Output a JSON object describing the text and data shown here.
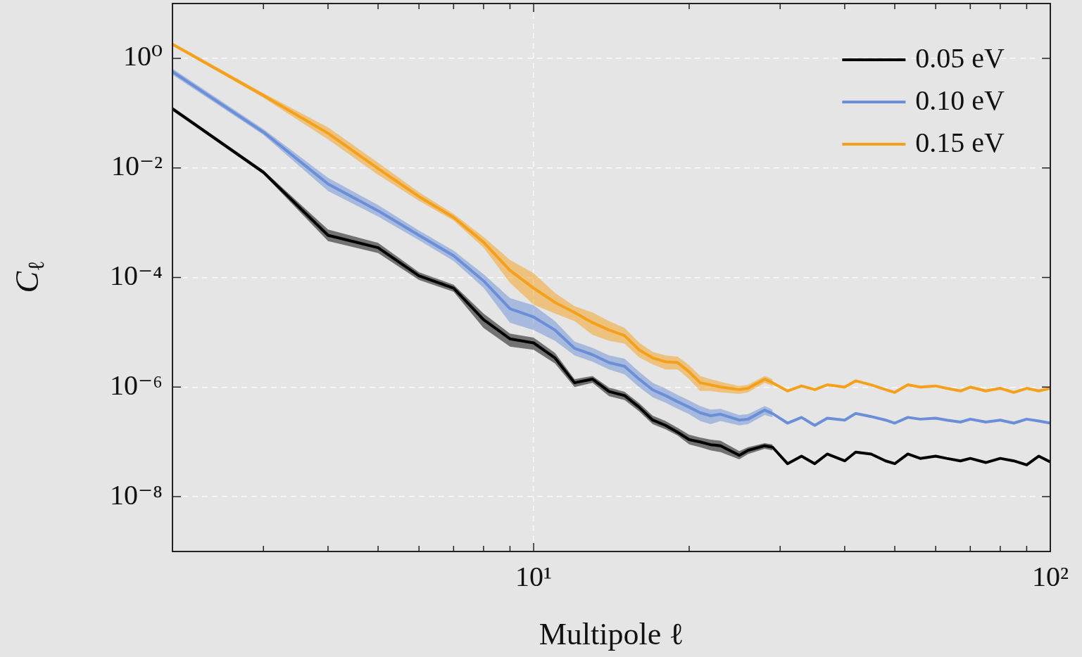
{
  "chart_data": {
    "type": "line",
    "xlabel": "Multipole ℓ",
    "ylabel": "C$_{ℓ}$",
    "log": "xy",
    "grid": true,
    "legend": "top right",
    "x": [
      2,
      3,
      4,
      5,
      6,
      7,
      8,
      9,
      10,
      11,
      12,
      13,
      14,
      15,
      16,
      17,
      18,
      19,
      20,
      21,
      22,
      23,
      25,
      26,
      28,
      29,
      31,
      33,
      35,
      37,
      40,
      42,
      45,
      48,
      50,
      53,
      56,
      60,
      63,
      67,
      70,
      75,
      80,
      85,
      90,
      95,
      100
    ],
    "xlim": [
      2,
      100
    ],
    "xticks": [
      {
        "value": 3,
        "label": null
      },
      {
        "value": 4,
        "label": null
      },
      {
        "value": 5,
        "label": null
      },
      {
        "value": 6,
        "label": null
      },
      {
        "value": 7,
        "label": null
      },
      {
        "value": 8,
        "label": null
      },
      {
        "value": 9,
        "label": null
      },
      {
        "value": 10,
        "label": "10¹"
      },
      {
        "value": 20,
        "label": null
      },
      {
        "value": 30,
        "label": null
      },
      {
        "value": 40,
        "label": null
      },
      {
        "value": 50,
        "label": null
      },
      {
        "value": 60,
        "label": null
      },
      {
        "value": 70,
        "label": null
      },
      {
        "value": 80,
        "label": null
      },
      {
        "value": 90,
        "label": null
      },
      {
        "value": 100,
        "label": "10²"
      }
    ],
    "ylim": [
      1e-09,
      10
    ],
    "yticks": [
      {
        "value": 1e-08,
        "label": "10⁻⁸"
      },
      {
        "value": 1e-06,
        "label": "10⁻⁶"
      },
      {
        "value": 0.0001,
        "label": "10⁻⁴"
      },
      {
        "value": 0.01,
        "label": "10⁻²"
      },
      {
        "value": 1,
        "label": "10⁰"
      }
    ],
    "series": [
      {
        "name": "0.05 eV",
        "color": "#000000",
        "values": [
          0.12,
          0.0083,
          0.00059,
          0.00035,
          0.000107,
          6.4e-05,
          1.7e-05,
          7.6e-06,
          6.4e-06,
          3.4e-06,
          1.2e-06,
          1.4e-06,
          8.3e-07,
          7e-07,
          4.3e-07,
          2.5e-07,
          2e-07,
          1.5e-07,
          1.1e-07,
          1e-07,
          8.9e-08,
          8.5e-08,
          5.7e-08,
          7e-08,
          8.5e-08,
          8e-08,
          4e-08,
          5.5e-08,
          4e-08,
          6e-08,
          4.5e-08,
          6.5e-08,
          6e-08,
          4.5e-08,
          4e-08,
          6e-08,
          5e-08,
          5.5e-08,
          5e-08,
          4.5e-08,
          5e-08,
          4.2e-08,
          5e-08,
          4.5e-08,
          3.8e-08,
          5.5e-08,
          4.3e-08
        ],
        "lower": [
          0.11,
          0.0077,
          0.00046,
          0.00028,
          9e-05,
          5.5e-05,
          1.2e-05,
          5.5e-06,
          4.8e-06,
          2.7e-06,
          1e-06,
          1.2e-06,
          6.8e-07,
          5.8e-07,
          3.6e-07,
          2.1e-07,
          1.7e-07,
          1.3e-07,
          9e-08,
          8e-08,
          7e-08,
          6.5e-08,
          4.8e-08,
          6e-08,
          7.5e-08,
          7e-08,
          null,
          null,
          null,
          null,
          null,
          null,
          null,
          null,
          null,
          null,
          null,
          null,
          null,
          null,
          null,
          null,
          null,
          null,
          null,
          null,
          null
        ],
        "upper": [
          0.13,
          0.009,
          0.00075,
          0.00043,
          0.000125,
          7.4e-05,
          2.2e-05,
          9.5e-06,
          8e-06,
          4.2e-06,
          1.4e-06,
          1.6e-06,
          9.8e-07,
          8.2e-07,
          5.1e-07,
          3e-07,
          2.4e-07,
          1.8e-07,
          1.35e-07,
          1.2e-07,
          1.1e-07,
          1.05e-07,
          6.8e-08,
          8e-08,
          9.5e-08,
          9e-08,
          null,
          null,
          null,
          null,
          null,
          null,
          null,
          null,
          null,
          null,
          null,
          null,
          null,
          null,
          null,
          null,
          null,
          null,
          null,
          null,
          null
        ]
      },
      {
        "name": "0.10 eV",
        "color": "#6a8fd8",
        "values": [
          0.57,
          0.045,
          0.0051,
          0.00165,
          0.00059,
          0.00025,
          8.7e-05,
          2.7e-05,
          1.9e-05,
          1.1e-05,
          5.1e-06,
          3.9e-06,
          2.8e-06,
          2.4e-06,
          1.4e-06,
          8.9e-07,
          7e-07,
          5.4e-07,
          4.3e-07,
          3.4e-07,
          3e-07,
          3.2e-07,
          2.5e-07,
          2.6e-07,
          3.8e-07,
          3.3e-07,
          2.2e-07,
          2.8e-07,
          2e-07,
          2.7e-07,
          2.5e-07,
          3.3e-07,
          2.9e-07,
          2.5e-07,
          2.2e-07,
          2.8e-07,
          2.6e-07,
          2.7e-07,
          2.5e-07,
          2.3e-07,
          2.6e-07,
          2.3e-07,
          2.5e-07,
          2.2e-07,
          2.6e-07,
          2.4e-07,
          2.2e-07
        ],
        "lower": [
          0.5,
          0.04,
          0.0038,
          0.0013,
          0.00048,
          0.0002,
          6.5e-05,
          1.5e-05,
          1.1e-05,
          7e-06,
          3.8e-06,
          2.9e-06,
          2.1e-06,
          1.7e-06,
          1e-06,
          6.5e-07,
          5.2e-07,
          4e-07,
          3.2e-07,
          2.4e-07,
          2.1e-07,
          2.4e-07,
          2e-07,
          2.1e-07,
          3.1e-07,
          2.8e-07,
          null,
          null,
          null,
          null,
          null,
          null,
          null,
          null,
          null,
          null,
          null,
          null,
          null,
          null,
          null,
          null,
          null,
          null,
          null,
          null,
          null
        ],
        "upper": [
          0.65,
          0.051,
          0.0066,
          0.0021,
          0.00072,
          0.00031,
          0.000115,
          4.2e-05,
          3.1e-05,
          1.6e-05,
          6.8e-06,
          5.2e-06,
          3.8e-06,
          3.3e-06,
          1.9e-06,
          1.2e-06,
          9.4e-07,
          7.2e-07,
          5.7e-07,
          4.5e-07,
          3.9e-07,
          4e-07,
          3.1e-07,
          3.2e-07,
          4.5e-07,
          3.9e-07,
          null,
          null,
          null,
          null,
          null,
          null,
          null,
          null,
          null,
          null,
          null,
          null,
          null,
          null,
          null,
          null,
          null,
          null,
          null,
          null,
          null
        ]
      },
      {
        "name": "0.15 eV",
        "color": "#f5a01a",
        "values": [
          1.8,
          0.21,
          0.043,
          0.0097,
          0.003,
          0.00125,
          0.00044,
          0.000135,
          6.4e-05,
          3.5e-05,
          2.3e-05,
          1.5e-05,
          1.1e-05,
          8.7e-06,
          4.8e-06,
          3.4e-06,
          2.9e-06,
          2.8e-06,
          1.9e-06,
          1.2e-06,
          1.1e-06,
          1e-06,
          9e-07,
          9.5e-07,
          1.4e-06,
          1.2e-06,
          8.5e-07,
          1.05e-06,
          9e-07,
          1.1e-06,
          1e-06,
          1.3e-06,
          1.1e-06,
          9e-07,
          8e-07,
          1.1e-06,
          1e-06,
          1.05e-06,
          9.5e-07,
          8.5e-07,
          1e-06,
          8.5e-07,
          9.5e-07,
          8e-07,
          9.5e-07,
          8.5e-07,
          9.5e-07
        ],
        "lower": [
          1.7,
          0.19,
          0.033,
          0.0075,
          0.0025,
          0.0011,
          0.00035,
          8e-05,
          3.2e-05,
          2.2e-05,
          1.6e-05,
          9e-06,
          7e-06,
          6.2e-06,
          3.5e-06,
          2.6e-06,
          2.1e-06,
          2.1e-06,
          1.4e-06,
          8.5e-07,
          8.5e-07,
          8e-07,
          7.5e-07,
          8e-07,
          1.2e-06,
          1.05e-06,
          null,
          null,
          null,
          null,
          null,
          null,
          null,
          null,
          null,
          null,
          null,
          null,
          null,
          null,
          null,
          null,
          null,
          null,
          null,
          null,
          null
        ],
        "upper": [
          1.95,
          0.23,
          0.055,
          0.0125,
          0.0036,
          0.00145,
          0.00055,
          0.00021,
          0.00012,
          5.2e-05,
          3e-05,
          2.3e-05,
          1.6e-05,
          1.2e-05,
          6.5e-06,
          4.4e-06,
          3.8e-06,
          3.6e-06,
          2.5e-06,
          1.6e-06,
          1.4e-06,
          1.25e-06,
          1.05e-06,
          1.1e-06,
          1.6e-06,
          1.4e-06,
          null,
          null,
          null,
          null,
          null,
          null,
          null,
          null,
          null,
          null,
          null,
          null,
          null,
          null,
          null,
          null,
          null,
          null,
          null,
          null,
          null
        ]
      }
    ]
  }
}
